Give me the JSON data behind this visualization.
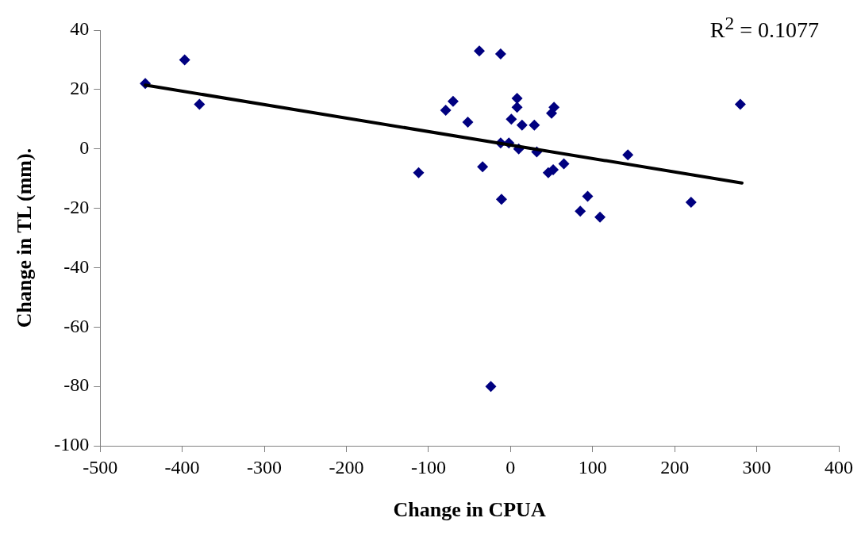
{
  "chart_data": {
    "type": "scatter",
    "xlabel": "Change in CPUA",
    "ylabel": "Change in TL (mm).",
    "annotations": [
      "R$^{2}$ = 0.1077"
    ],
    "xlim": [
      -500,
      400
    ],
    "xticks": [
      -500,
      -400,
      -300,
      -200,
      -100,
      0,
      100,
      200,
      300,
      400
    ],
    "ylim": [
      -100,
      40
    ],
    "yticks": [
      -100,
      -80,
      -60,
      -40,
      -20,
      0,
      20,
      40
    ],
    "grid": false,
    "legend": false,
    "marker": "diamond",
    "series": [
      {
        "type": "scatter",
        "color": "#000080",
        "x": [
          -445,
          -397,
          -379,
          -112,
          -79,
          -70,
          -52,
          -38,
          -34,
          -24,
          -12,
          -12,
          -11,
          -2,
          1,
          8,
          8,
          10,
          14,
          29,
          32,
          46,
          50,
          52,
          53,
          65,
          85,
          94,
          109,
          143,
          220,
          280
        ],
        "values": [
          22,
          30,
          15,
          -8,
          13,
          16,
          9,
          33,
          -6,
          -80,
          32,
          2,
          -17,
          2,
          10,
          17,
          14,
          0,
          8,
          8,
          -1,
          -8,
          12,
          -7,
          14,
          -5,
          -21,
          -16,
          -23,
          -2,
          -18,
          15
        ]
      },
      {
        "type": "line",
        "color": "#000000",
        "marker": "none",
        "x": [
          -445,
          282
        ],
        "values": [
          21.5,
          -11.5
        ]
      }
    ]
  }
}
